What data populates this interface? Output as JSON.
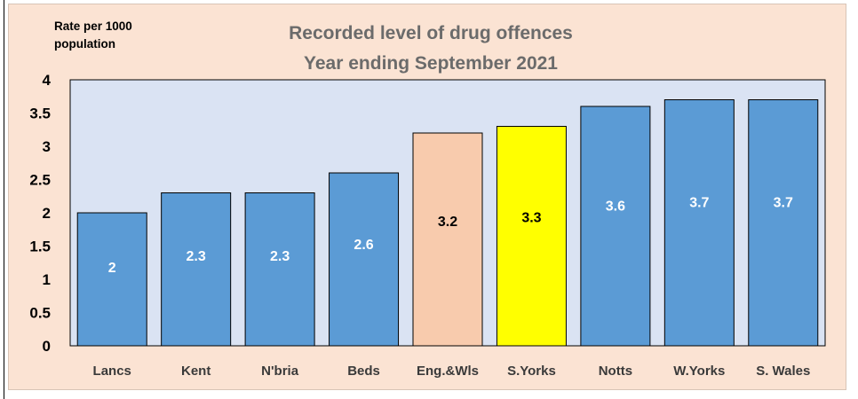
{
  "chart_data": {
    "type": "bar",
    "title": [
      "Recorded level of drug offences",
      "Year ending September 2021"
    ],
    "ylabel": [
      "Rate per 1000",
      "population"
    ],
    "xlabel": "",
    "ylim": [
      0,
      4
    ],
    "ytick_labels": [
      "0",
      "0.5",
      "1",
      "1.5",
      "2",
      "2.5",
      "3",
      "3.5",
      "4"
    ],
    "categories": [
      "Lancs",
      "Kent",
      "N'bria",
      "Beds",
      "Eng.&Wls",
      "S.Yorks",
      "Notts",
      "W.Yorks",
      "S. Wales"
    ],
    "values": [
      2,
      2.3,
      2.3,
      2.6,
      3.2,
      3.3,
      3.6,
      3.7,
      3.7
    ],
    "data_labels": [
      "2",
      "2.3",
      "2.3",
      "2.6",
      "3.2",
      "3.3",
      "3.6",
      "3.7",
      "3.7"
    ],
    "bar_colors": [
      "#5b9bd5",
      "#5b9bd5",
      "#5b9bd5",
      "#5b9bd5",
      "#f8cbad",
      "#ffff00",
      "#5b9bd5",
      "#5b9bd5",
      "#5b9bd5"
    ],
    "label_colors": [
      "#ffffff",
      "#ffffff",
      "#ffffff",
      "#ffffff",
      "#000000",
      "#000000",
      "#ffffff",
      "#ffffff",
      "#ffffff"
    ],
    "grid": false,
    "legend": "none",
    "colors": {
      "outer_background": "#fbe3d3",
      "plot_background": "#dae3f3",
      "title": "#6b6b6b"
    }
  }
}
